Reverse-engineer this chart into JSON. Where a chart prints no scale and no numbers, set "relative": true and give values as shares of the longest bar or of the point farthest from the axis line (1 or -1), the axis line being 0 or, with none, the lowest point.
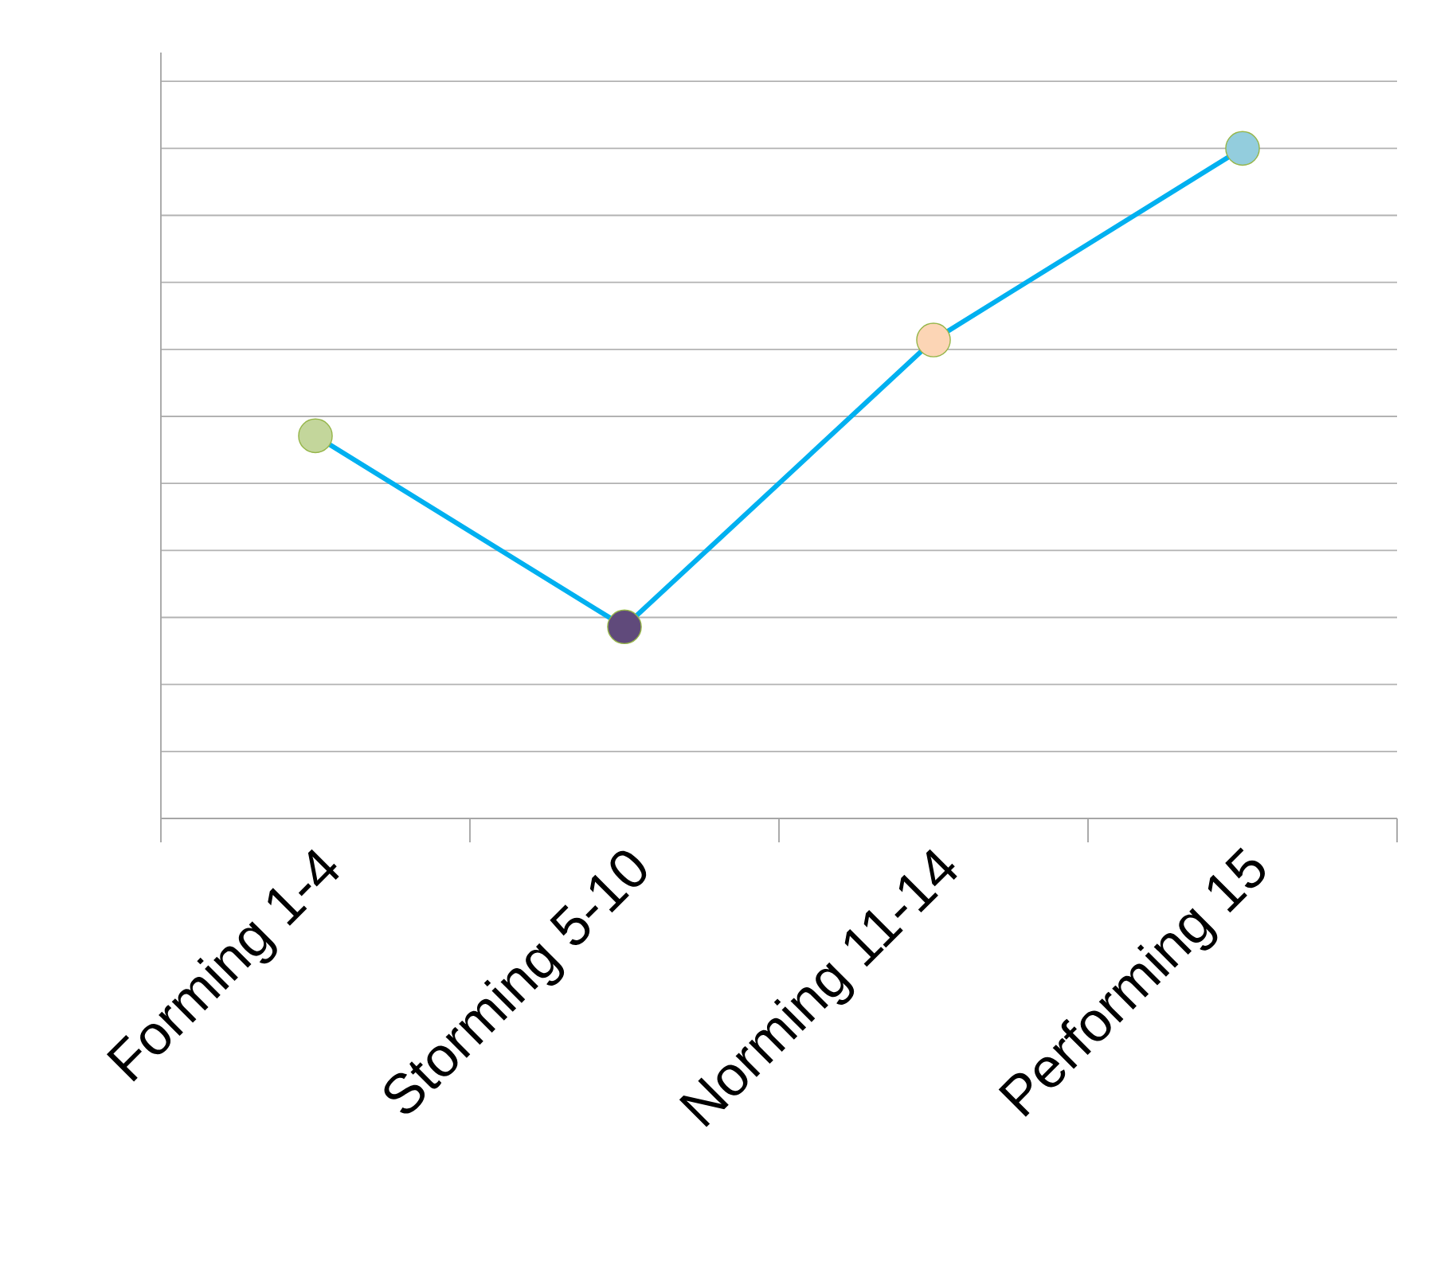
{
  "chart_data": {
    "type": "line",
    "relative": true,
    "categories": [
      "Forming 1-4",
      "Storming 5-10",
      "Norming 11-14",
      "Performing 15"
    ],
    "values": [
      0.571,
      0.286,
      0.714,
      1
    ],
    "color": "#00b0f0",
    "colors": [
      "#c3d69b",
      "#604a7b",
      "#fcd5b5",
      "#93cddd"
    ],
    "marker": "circle",
    "grid": "y"
  }
}
